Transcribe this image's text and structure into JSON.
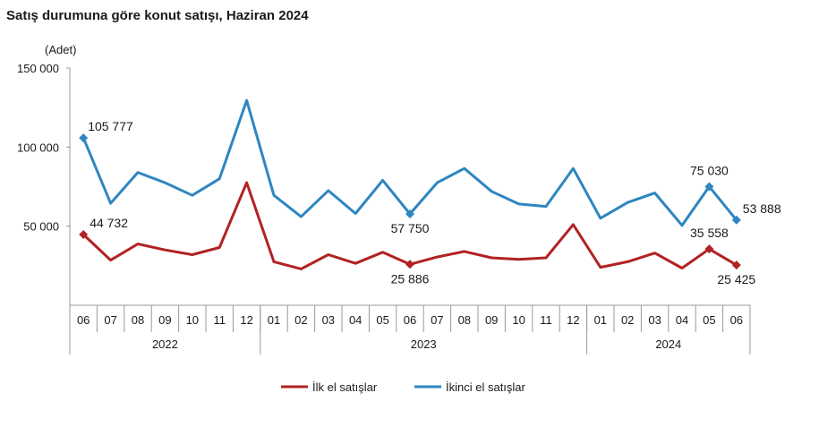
{
  "chart_data": {
    "type": "line",
    "title": "Satış durumuna göre konut satışı, Haziran 2024",
    "ylabel": "(Adet)",
    "xlabel": "",
    "ylim": [
      0,
      150000
    ],
    "yticks": [
      {
        "value": 50000,
        "label": "50 000"
      },
      {
        "value": 100000,
        "label": "100 000"
      },
      {
        "value": 150000,
        "label": "150 000"
      }
    ],
    "categories": [
      "06",
      "07",
      "08",
      "09",
      "10",
      "11",
      "12",
      "01",
      "02",
      "03",
      "04",
      "05",
      "06",
      "07",
      "08",
      "09",
      "10",
      "11",
      "12",
      "01",
      "02",
      "03",
      "04",
      "05",
      "06"
    ],
    "year_groups": [
      {
        "label": "2022",
        "start": 0,
        "end": 6
      },
      {
        "label": "2023",
        "start": 7,
        "end": 18
      },
      {
        "label": "2024",
        "start": 19,
        "end": 24
      }
    ],
    "series": [
      {
        "name": "İlk el satışlar",
        "color": "#b22222",
        "values": [
          44732,
          28500,
          38800,
          35000,
          32000,
          36500,
          77500,
          27500,
          23000,
          32000,
          26500,
          33500,
          25886,
          30500,
          34000,
          30000,
          29000,
          30000,
          51000,
          24000,
          27500,
          33000,
          23500,
          35558,
          25425
        ],
        "markers": [
          0,
          12,
          23,
          24
        ],
        "labels": [
          {
            "index": 0,
            "text": "44 732",
            "pos": "right"
          },
          {
            "index": 12,
            "text": "25 886",
            "pos": "below"
          },
          {
            "index": 23,
            "text": "35 558",
            "pos": "above"
          },
          {
            "index": 24,
            "text": "25 425",
            "pos": "below"
          }
        ]
      },
      {
        "name": "İkinci el satışlar",
        "color": "#2e86c1",
        "values": [
          105777,
          64500,
          84000,
          77500,
          69500,
          80000,
          129500,
          69500,
          56000,
          72500,
          58000,
          79000,
          57750,
          77500,
          86500,
          72000,
          64000,
          62500,
          86500,
          55000,
          65000,
          71000,
          50500,
          75030,
          53888
        ],
        "markers": [
          0,
          12,
          23,
          24
        ],
        "labels": [
          {
            "index": 0,
            "text": "105 777",
            "pos": "right-above"
          },
          {
            "index": 12,
            "text": "57 750",
            "pos": "below"
          },
          {
            "index": 23,
            "text": "75 030",
            "pos": "above"
          },
          {
            "index": 24,
            "text": "53 888",
            "pos": "right"
          }
        ]
      }
    ],
    "legend": "bottom-center"
  }
}
